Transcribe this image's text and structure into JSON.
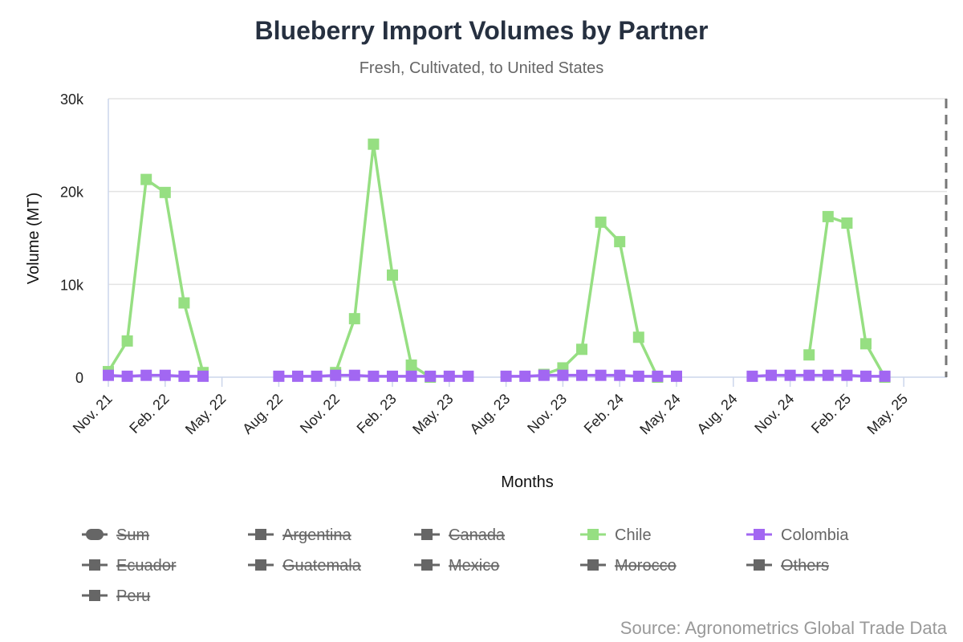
{
  "chart_data": {
    "type": "line",
    "title": "Blueberry Import Volumes by Partner",
    "subtitle": "Fresh, Cultivated, to United States",
    "xlabel": "Months",
    "ylabel": "Volume (MT)",
    "ylim": [
      0,
      30000
    ],
    "yticks": [
      0,
      10000,
      20000,
      30000
    ],
    "ytick_labels": [
      "0",
      "10k",
      "20k",
      "30k"
    ],
    "xtick_labels": [
      "Nov. 21",
      "Feb. 22",
      "May. 22",
      "Aug. 22",
      "Nov. 22",
      "Feb. 23",
      "May. 23",
      "Aug. 23",
      "Nov. 23",
      "Feb. 24",
      "May. 24",
      "Aug. 24",
      "Nov. 24",
      "Feb. 25",
      "May. 25"
    ],
    "months": [
      "2021-11",
      "2021-12",
      "2022-01",
      "2022-02",
      "2022-03",
      "2022-04",
      "2022-05",
      "2022-06",
      "2022-07",
      "2022-08",
      "2022-09",
      "2022-10",
      "2022-11",
      "2022-12",
      "2023-01",
      "2023-02",
      "2023-03",
      "2023-04",
      "2023-05",
      "2023-06",
      "2023-07",
      "2023-08",
      "2023-09",
      "2023-10",
      "2023-11",
      "2023-12",
      "2024-01",
      "2024-02",
      "2024-03",
      "2024-04",
      "2024-05",
      "2024-06",
      "2024-07",
      "2024-08",
      "2024-09",
      "2024-10",
      "2024-11",
      "2024-12",
      "2025-01",
      "2025-02",
      "2025-03",
      "2025-04",
      "2025-05",
      "2025-06",
      "2025-07"
    ],
    "grid": true,
    "legend_position": "bottom",
    "series": [
      {
        "name": "Chile",
        "color": "#96df82",
        "visible": true,
        "values": [
          600,
          3900,
          21300,
          19900,
          8000,
          500,
          null,
          null,
          null,
          null,
          null,
          null,
          500,
          6300,
          25100,
          11000,
          1300,
          0,
          null,
          null,
          null,
          null,
          null,
          300,
          1000,
          3000,
          16700,
          14600,
          4300,
          0,
          null,
          null,
          null,
          null,
          null,
          null,
          null,
          2400,
          17300,
          16600,
          3600,
          0,
          null,
          null,
          null
        ]
      },
      {
        "name": "Colombia",
        "color": "#a267f2",
        "visible": true,
        "values": [
          200,
          100,
          200,
          200,
          100,
          100,
          null,
          null,
          null,
          100,
          100,
          100,
          200,
          200,
          100,
          100,
          100,
          100,
          100,
          100,
          null,
          100,
          100,
          200,
          200,
          200,
          200,
          200,
          100,
          100,
          100,
          null,
          null,
          null,
          100,
          200,
          200,
          200,
          200,
          200,
          100,
          100,
          null,
          null,
          null
        ]
      }
    ]
  },
  "legend": [
    {
      "label": "Sum",
      "color": "#666666",
      "active": false,
      "shape": "round"
    },
    {
      "label": "Argentina",
      "color": "#666666",
      "active": false,
      "shape": "square"
    },
    {
      "label": "Canada",
      "color": "#666666",
      "active": false,
      "shape": "square"
    },
    {
      "label": "Chile",
      "color": "#96df82",
      "active": true,
      "shape": "square"
    },
    {
      "label": "Colombia",
      "color": "#a267f2",
      "active": true,
      "shape": "square"
    },
    {
      "label": "Ecuador",
      "color": "#666666",
      "active": false,
      "shape": "square"
    },
    {
      "label": "Guatemala",
      "color": "#666666",
      "active": false,
      "shape": "square"
    },
    {
      "label": "Mexico",
      "color": "#666666",
      "active": false,
      "shape": "square"
    },
    {
      "label": "Morocco",
      "color": "#666666",
      "active": false,
      "shape": "square"
    },
    {
      "label": "Others",
      "color": "#666666",
      "active": false,
      "shape": "square"
    },
    {
      "label": "Peru",
      "color": "#666666",
      "active": false,
      "shape": "square"
    }
  ],
  "source": "Source: Agronometrics Global Trade Data"
}
